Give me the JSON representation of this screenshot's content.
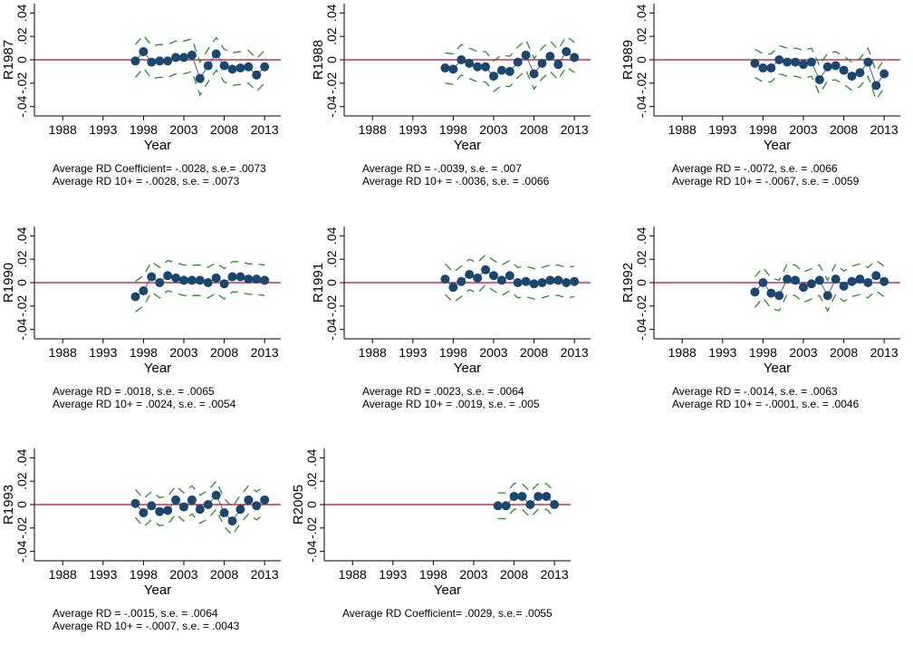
{
  "chart_data": [
    {
      "type": "line",
      "ylabel": "R1987",
      "xlabel": "Year",
      "x": [
        1997,
        1998,
        1999,
        2000,
        2001,
        2002,
        2003,
        2004,
        2005,
        2006,
        2007,
        2008,
        2009,
        2010,
        2011,
        2012,
        2013
      ],
      "series": [
        {
          "color": "#1a476f",
          "marker": true,
          "values": [
            -0.001,
            0.007,
            -0.002,
            -0.001,
            -0.001,
            0.002,
            0.002,
            0.004,
            -0.016,
            -0.005,
            0.005,
            -0.005,
            -0.008,
            -0.007,
            -0.006,
            -0.013,
            -0.006
          ]
        },
        {
          "color": "#2a8a2a",
          "dashed": true,
          "values": [
            0.013,
            0.021,
            0.012,
            0.013,
            0.013,
            0.016,
            0.016,
            0.018,
            -0.002,
            0.009,
            0.019,
            0.009,
            0.006,
            0.007,
            0.008,
            0.001,
            0.008
          ]
        },
        {
          "color": "#2a8a2a",
          "dashed": true,
          "values": [
            -0.015,
            -0.007,
            -0.016,
            -0.015,
            -0.015,
            -0.012,
            -0.012,
            -0.01,
            -0.03,
            -0.019,
            -0.009,
            -0.019,
            -0.022,
            -0.021,
            -0.02,
            -0.027,
            -0.02
          ]
        }
      ],
      "refline": 0,
      "refline_color": "#c10534",
      "xlim": [
        1984.5,
        2015
      ],
      "xticks": [
        1988,
        1993,
        1998,
        2003,
        2008,
        2013
      ],
      "ylim": [
        -0.048,
        0.048
      ],
      "yticks": [
        {
          "value": -0.04,
          "label": "-.04"
        },
        {
          "value": -0.02,
          "label": "-.02"
        },
        0,
        {
          "value": 0.02,
          "label": ".02"
        },
        {
          "value": 0.04,
          "label": ".04"
        }
      ],
      "notes": [
        "Average RD Coefficient= -.0028, s.e.= .0073",
        "Average RD 10+ = -.0028, s.e. = .0073"
      ]
    },
    {
      "type": "line",
      "ylabel": "R1988",
      "xlabel": "Year",
      "x": [
        1997,
        1998,
        1999,
        2000,
        2001,
        2002,
        2003,
        2004,
        2005,
        2006,
        2007,
        2008,
        2009,
        2010,
        2011,
        2012,
        2013
      ],
      "series": [
        {
          "color": "#1a476f",
          "marker": true,
          "values": [
            -0.007,
            -0.008,
            0.0,
            -0.003,
            -0.006,
            -0.006,
            -0.014,
            -0.009,
            -0.01,
            -0.002,
            0.004,
            -0.012,
            -0.003,
            0.003,
            -0.004,
            0.007,
            0.002
          ]
        },
        {
          "color": "#2a8a2a",
          "dashed": true,
          "values": [
            0.006,
            0.005,
            0.013,
            0.01,
            0.007,
            0.007,
            -0.001,
            0.004,
            0.003,
            0.011,
            0.017,
            0.001,
            0.01,
            0.016,
            0.009,
            0.02,
            0.015
          ]
        },
        {
          "color": "#2a8a2a",
          "dashed": true,
          "values": [
            -0.02,
            -0.021,
            -0.013,
            -0.016,
            -0.019,
            -0.019,
            -0.027,
            -0.022,
            -0.023,
            -0.015,
            -0.009,
            -0.025,
            -0.016,
            -0.01,
            -0.017,
            -0.006,
            -0.011
          ]
        }
      ],
      "refline": 0,
      "refline_color": "#c10534",
      "xlim": [
        1984.5,
        2015
      ],
      "xticks": [
        1988,
        1993,
        1998,
        2003,
        2008,
        2013
      ],
      "ylim": [
        -0.048,
        0.048
      ],
      "yticks": [
        {
          "value": -0.04,
          "label": "-.04"
        },
        {
          "value": -0.02,
          "label": "-.02"
        },
        0,
        {
          "value": 0.02,
          "label": ".02"
        },
        {
          "value": 0.04,
          "label": ".04"
        }
      ],
      "notes": [
        "Average RD = -.0039, s.e. = .007",
        "Average RD 10+ = -.0036, s.e. = .0066"
      ]
    },
    {
      "type": "line",
      "ylabel": "R1989",
      "xlabel": "Year",
      "x": [
        1997,
        1998,
        1999,
        2000,
        2001,
        2002,
        2003,
        2004,
        2005,
        2006,
        2007,
        2008,
        2009,
        2010,
        2011,
        2012,
        2013
      ],
      "series": [
        {
          "color": "#1a476f",
          "marker": true,
          "values": [
            -0.003,
            -0.007,
            -0.007,
            0.0,
            -0.002,
            -0.002,
            -0.004,
            -0.002,
            -0.017,
            -0.006,
            -0.005,
            -0.009,
            -0.014,
            -0.011,
            -0.002,
            -0.022,
            -0.012
          ]
        },
        {
          "color": "#2a8a2a",
          "dashed": true,
          "values": [
            0.009,
            0.005,
            0.005,
            0.012,
            0.01,
            0.01,
            0.008,
            0.01,
            -0.005,
            0.006,
            0.007,
            0.003,
            -0.002,
            0.001,
            0.01,
            -0.01,
            0.0
          ]
        },
        {
          "color": "#2a8a2a",
          "dashed": true,
          "values": [
            -0.015,
            -0.019,
            -0.019,
            -0.012,
            -0.014,
            -0.014,
            -0.016,
            -0.014,
            -0.029,
            -0.018,
            -0.017,
            -0.021,
            -0.026,
            -0.023,
            -0.014,
            -0.034,
            -0.024
          ]
        }
      ],
      "refline": 0,
      "refline_color": "#c10534",
      "xlim": [
        1984.5,
        2015
      ],
      "xticks": [
        1988,
        1993,
        1998,
        2003,
        2008,
        2013
      ],
      "ylim": [
        -0.048,
        0.048
      ],
      "yticks": [
        {
          "value": -0.04,
          "label": "-.04"
        },
        {
          "value": -0.02,
          "label": "-.02"
        },
        0,
        {
          "value": 0.02,
          "label": ".02"
        },
        {
          "value": 0.04,
          "label": ".04"
        }
      ],
      "notes": [
        "Average RD = -.0072, s.e. = .0066",
        "Average RD 10+ = -.0067, s.e. = .0059"
      ]
    },
    {
      "type": "line",
      "ylabel": "R1990",
      "xlabel": "Year",
      "x": [
        1997,
        1998,
        1999,
        2000,
        2001,
        2002,
        2003,
        2004,
        2005,
        2006,
        2007,
        2008,
        2009,
        2010,
        2011,
        2012,
        2013
      ],
      "series": [
        {
          "color": "#1a476f",
          "marker": true,
          "values": [
            -0.012,
            -0.007,
            0.005,
            0.0,
            0.006,
            0.004,
            0.002,
            0.002,
            0.002,
            0.0,
            0.004,
            -0.001,
            0.005,
            0.005,
            0.003,
            0.003,
            0.002
          ]
        },
        {
          "color": "#2a8a2a",
          "dashed": true,
          "values": [
            0.001,
            0.006,
            0.018,
            0.013,
            0.019,
            0.017,
            0.015,
            0.015,
            0.015,
            0.013,
            0.017,
            0.012,
            0.018,
            0.018,
            0.016,
            0.016,
            0.015
          ]
        },
        {
          "color": "#2a8a2a",
          "dashed": true,
          "values": [
            -0.025,
            -0.02,
            -0.008,
            -0.013,
            -0.007,
            -0.009,
            -0.011,
            -0.011,
            -0.011,
            -0.013,
            -0.009,
            -0.014,
            -0.008,
            -0.008,
            -0.01,
            -0.01,
            -0.011
          ]
        }
      ],
      "refline": 0,
      "refline_color": "#c10534",
      "xlim": [
        1984.5,
        2015
      ],
      "xticks": [
        1988,
        1993,
        1998,
        2003,
        2008,
        2013
      ],
      "ylim": [
        -0.048,
        0.048
      ],
      "yticks": [
        {
          "value": -0.04,
          "label": "-.04"
        },
        {
          "value": -0.02,
          "label": "-.02"
        },
        0,
        {
          "value": 0.02,
          "label": ".02"
        },
        {
          "value": 0.04,
          "label": ".04"
        }
      ],
      "notes": [
        "Average RD = .0018, s.e. = .0065",
        "Average RD 10+ = .0024, s.e. = .0054"
      ]
    },
    {
      "type": "line",
      "ylabel": "R1991",
      "xlabel": "Year",
      "x": [
        1997,
        1998,
        1999,
        2000,
        2001,
        2002,
        2003,
        2004,
        2005,
        2006,
        2007,
        2008,
        2009,
        2010,
        2011,
        2012,
        2013
      ],
      "series": [
        {
          "color": "#1a476f",
          "marker": true,
          "values": [
            0.003,
            -0.004,
            0.001,
            0.007,
            0.004,
            0.011,
            0.006,
            0.002,
            0.006,
            0.0,
            0.001,
            -0.001,
            0.0,
            0.002,
            0.002,
            0.0,
            0.001
          ]
        },
        {
          "color": "#2a8a2a",
          "dashed": true,
          "values": [
            0.016,
            0.009,
            0.014,
            0.02,
            0.017,
            0.024,
            0.019,
            0.015,
            0.019,
            0.013,
            0.014,
            0.012,
            0.013,
            0.015,
            0.015,
            0.013,
            0.014
          ]
        },
        {
          "color": "#2a8a2a",
          "dashed": true,
          "values": [
            -0.01,
            -0.017,
            -0.012,
            -0.006,
            -0.009,
            -0.002,
            -0.007,
            -0.011,
            -0.007,
            -0.013,
            -0.012,
            -0.014,
            -0.013,
            -0.011,
            -0.011,
            -0.013,
            -0.012
          ]
        }
      ],
      "refline": 0,
      "refline_color": "#c10534",
      "xlim": [
        1984.5,
        2015
      ],
      "xticks": [
        1988,
        1993,
        1998,
        2003,
        2008,
        2013
      ],
      "ylim": [
        -0.048,
        0.048
      ],
      "yticks": [
        {
          "value": -0.04,
          "label": "-.04"
        },
        {
          "value": -0.02,
          "label": "-.02"
        },
        0,
        {
          "value": 0.02,
          "label": ".02"
        },
        {
          "value": 0.04,
          "label": ".04"
        }
      ],
      "notes": [
        "Average RD = .0023, s.e. = .0064",
        "Average RD 10+ = .0019, s.e. = .005"
      ]
    },
    {
      "type": "line",
      "ylabel": "R1992",
      "xlabel": "Year",
      "x": [
        1997,
        1998,
        1999,
        2000,
        2001,
        2002,
        2003,
        2004,
        2005,
        2006,
        2007,
        2008,
        2009,
        2010,
        2011,
        2012,
        2013
      ],
      "series": [
        {
          "color": "#1a476f",
          "marker": true,
          "values": [
            -0.008,
            0.0,
            -0.009,
            -0.011,
            0.003,
            0.002,
            -0.004,
            -0.001,
            0.002,
            -0.011,
            0.003,
            -0.003,
            0.001,
            0.003,
            0.0,
            0.006,
            0.001
          ]
        },
        {
          "color": "#2a8a2a",
          "dashed": true,
          "values": [
            0.005,
            0.013,
            0.004,
            0.002,
            0.016,
            0.015,
            0.009,
            0.012,
            0.015,
            0.002,
            0.016,
            0.01,
            0.014,
            0.016,
            0.013,
            0.019,
            0.014
          ]
        },
        {
          "color": "#2a8a2a",
          "dashed": true,
          "values": [
            -0.021,
            -0.013,
            -0.022,
            -0.024,
            -0.01,
            -0.011,
            -0.017,
            -0.014,
            -0.011,
            -0.024,
            -0.01,
            -0.016,
            -0.012,
            -0.01,
            -0.013,
            -0.007,
            -0.012
          ]
        }
      ],
      "refline": 0,
      "refline_color": "#c10534",
      "xlim": [
        1984.5,
        2015
      ],
      "xticks": [
        1988,
        1993,
        1998,
        2003,
        2008,
        2013
      ],
      "ylim": [
        -0.048,
        0.048
      ],
      "yticks": [
        {
          "value": -0.04,
          "label": "-.04"
        },
        {
          "value": -0.02,
          "label": "-.02"
        },
        0,
        {
          "value": 0.02,
          "label": ".02"
        },
        {
          "value": 0.04,
          "label": ".04"
        }
      ],
      "notes": [
        "Average RD = -.0014, s.e. = .0063",
        "Average RD 10+ = -.0001, s.e. = .0046"
      ]
    },
    {
      "type": "line",
      "ylabel": "R1993",
      "xlabel": "Year",
      "x": [
        1997,
        1998,
        1999,
        2000,
        2001,
        2002,
        2003,
        2004,
        2005,
        2006,
        2007,
        2008,
        2009,
        2010,
        2011,
        2012,
        2013
      ],
      "series": [
        {
          "color": "#1a476f",
          "marker": true,
          "values": [
            0.001,
            -0.007,
            -0.001,
            -0.006,
            -0.005,
            0.004,
            -0.002,
            0.004,
            -0.004,
            0.0,
            0.008,
            -0.007,
            -0.014,
            -0.004,
            0.004,
            -0.001,
            0.004
          ]
        },
        {
          "color": "#2a8a2a",
          "dashed": true,
          "values": [
            0.013,
            0.005,
            0.011,
            0.006,
            0.007,
            0.016,
            0.01,
            0.016,
            0.008,
            0.012,
            0.02,
            0.005,
            -0.002,
            0.008,
            0.016,
            0.011,
            0.016
          ]
        },
        {
          "color": "#2a8a2a",
          "dashed": true,
          "values": [
            -0.011,
            -0.019,
            -0.013,
            -0.018,
            -0.017,
            -0.008,
            -0.014,
            -0.008,
            -0.016,
            -0.012,
            -0.004,
            -0.019,
            -0.026,
            -0.016,
            -0.008,
            -0.013,
            -0.008
          ]
        }
      ],
      "refline": 0,
      "refline_color": "#c10534",
      "xlim": [
        1984.5,
        2015
      ],
      "xticks": [
        1988,
        1993,
        1998,
        2003,
        2008,
        2013
      ],
      "ylim": [
        -0.048,
        0.048
      ],
      "yticks": [
        {
          "value": -0.04,
          "label": "-.04"
        },
        {
          "value": -0.02,
          "label": "-.02"
        },
        0,
        {
          "value": 0.02,
          "label": ".02"
        },
        {
          "value": 0.04,
          "label": ".04"
        }
      ],
      "notes": [
        "Average RD = -.0015, s.e. = .0064",
        "Average RD 10+ = -.0007, s.e. = .0043"
      ]
    },
    {
      "type": "line",
      "ylabel": "R2005",
      "xlabel": "Year",
      "x": [
        2006,
        2007,
        2008,
        2009,
        2010,
        2011,
        2012,
        2013
      ],
      "series": [
        {
          "color": "#1a476f",
          "marker": true,
          "values": [
            -0.001,
            -0.001,
            0.007,
            0.007,
            0.0,
            0.007,
            0.007,
            0.0
          ]
        },
        {
          "color": "#2a8a2a",
          "dashed": true,
          "values": [
            0.01,
            0.01,
            0.018,
            0.018,
            0.011,
            0.018,
            0.018,
            0.011
          ]
        },
        {
          "color": "#2a8a2a",
          "dashed": true,
          "values": [
            -0.012,
            -0.012,
            -0.004,
            -0.004,
            -0.011,
            -0.004,
            -0.004,
            -0.011
          ]
        }
      ],
      "refline": 0,
      "refline_color": "#c10534",
      "xlim": [
        1984.5,
        2015
      ],
      "xticks": [
        1988,
        1993,
        1998,
        2003,
        2008,
        2013
      ],
      "ylim": [
        -0.048,
        0.048
      ],
      "yticks": [
        {
          "value": -0.04,
          "label": "-.04"
        },
        {
          "value": -0.02,
          "label": "-.02"
        },
        0,
        {
          "value": 0.02,
          "label": ".02"
        },
        {
          "value": 0.04,
          "label": ".04"
        }
      ],
      "notes": [
        "Average RD Coefficient= .0029, s.e.= .0055"
      ]
    }
  ]
}
